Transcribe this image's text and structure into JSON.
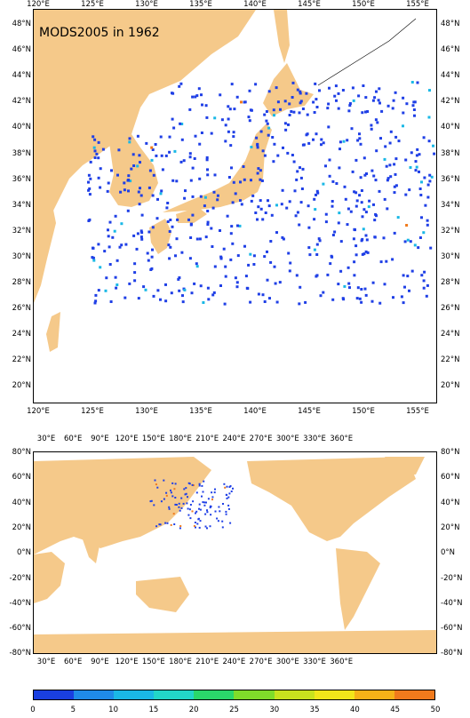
{
  "title": "MODS2005 in 1962",
  "top_map": {
    "lon_ticks": [
      "120°E",
      "125°E",
      "130°E",
      "135°E",
      "140°E",
      "145°E",
      "150°E",
      "155°E"
    ],
    "lat_ticks": [
      "48°N",
      "46°N",
      "44°N",
      "42°N",
      "40°N",
      "38°N",
      "36°N",
      "34°N",
      "32°N",
      "30°N",
      "28°N",
      "26°N",
      "24°N",
      "22°N",
      "20°N"
    ]
  },
  "bottom_map": {
    "lon_ticks": [
      "30°E",
      "60°E",
      "90°E",
      "120°E",
      "150°E",
      "180°E",
      "210°E",
      "240°E",
      "270°E",
      "300°E",
      "330°E",
      "360°E"
    ],
    "lat_ticks": [
      "80°N",
      "60°N",
      "40°N",
      "20°N",
      "0°N",
      "-20°N",
      "-40°N",
      "-60°N",
      "-80°N"
    ]
  },
  "colorbar": {
    "labels": [
      "0",
      "5",
      "10",
      "15",
      "20",
      "25",
      "30",
      "35",
      "40",
      "45",
      "50"
    ],
    "colors": [
      "#1a3fe0",
      "#1f8be8",
      "#1ab8e6",
      "#22d6c8",
      "#2ad86a",
      "#7fdc2a",
      "#c8e21e",
      "#f2e61a",
      "#f6b218",
      "#f07a1c",
      "#e8451a"
    ]
  },
  "colors": {
    "land": "#f5c98a",
    "obs_low": "#1f3fe6",
    "obs_mid": "#1ab8e6",
    "obs_high": "#f07a1c"
  }
}
